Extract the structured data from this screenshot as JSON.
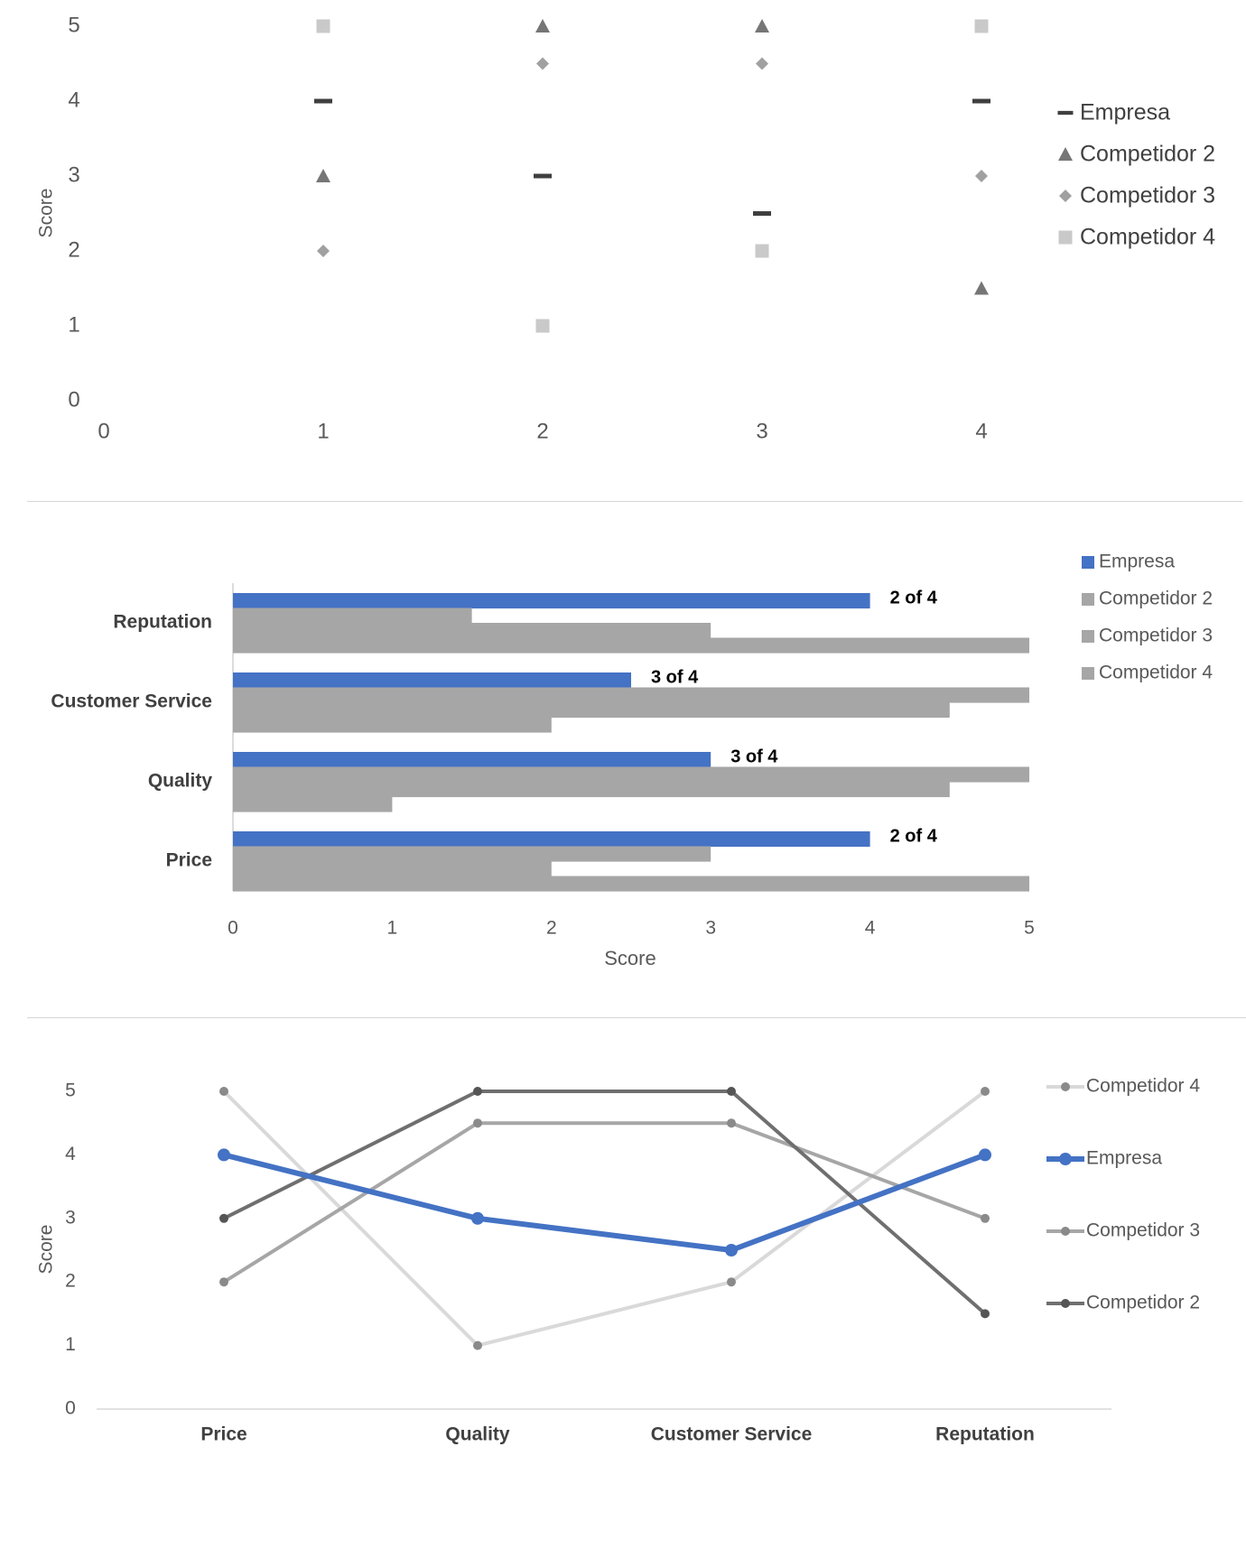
{
  "colors": {
    "empresa_marker": "#3f3f3f",
    "competidor2_marker": "#767676",
    "competidor3_marker": "#a0a0a0",
    "competidor4_marker": "#c9c9c9",
    "empresa_bar": "#4472c4",
    "competitor_bar": "#a6a6a6",
    "empresa_line": "#4472c4",
    "competidor2_line": "#6f6f6f",
    "competidor3_line": "#a6a6a6",
    "competidor4_line": "#d9d9d9"
  },
  "chart_data": [
    {
      "type": "scatter",
      "ylabel": "Score",
      "xlim": [
        0,
        4
      ],
      "ylim": [
        0,
        5
      ],
      "x_ticks": [
        "0",
        "1",
        "2",
        "3",
        "4"
      ],
      "y_ticks": [
        "0",
        "1",
        "2",
        "3",
        "4",
        "5"
      ],
      "legend_position": "right",
      "grid": false,
      "series": [
        {
          "name": "Empresa",
          "marker": "dash",
          "points": [
            [
              1,
              4
            ],
            [
              2,
              3
            ],
            [
              3,
              2.5
            ],
            [
              4,
              4
            ]
          ]
        },
        {
          "name": "Competidor 2",
          "marker": "triangle",
          "points": [
            [
              1,
              3
            ],
            [
              2,
              5
            ],
            [
              3,
              5
            ],
            [
              4,
              1.5
            ]
          ]
        },
        {
          "name": "Competidor 3",
          "marker": "diamond",
          "points": [
            [
              1,
              2
            ],
            [
              2,
              4.5
            ],
            [
              3,
              4.5
            ],
            [
              4,
              3
            ]
          ]
        },
        {
          "name": "Competidor 4",
          "marker": "square",
          "points": [
            [
              1,
              5
            ],
            [
              2,
              1
            ],
            [
              3,
              2
            ],
            [
              4,
              5
            ]
          ]
        }
      ]
    },
    {
      "type": "bar",
      "orientation": "horizontal",
      "xlabel": "Score",
      "xlim": [
        0,
        5
      ],
      "x_ticks": [
        "0",
        "1",
        "2",
        "3",
        "4",
        "5"
      ],
      "legend_position": "top-right",
      "grid": false,
      "categories": [
        "Price",
        "Quality",
        "Customer Service",
        "Reputation"
      ],
      "series": [
        {
          "name": "Empresa",
          "values": [
            4,
            3,
            2.5,
            4
          ]
        },
        {
          "name": "Competidor 2",
          "values": [
            3,
            5,
            5,
            1.5
          ]
        },
        {
          "name": "Competidor 3",
          "values": [
            2,
            4.5,
            4.5,
            3
          ]
        },
        {
          "name": "Competidor 4",
          "values": [
            5,
            1,
            2,
            5
          ]
        }
      ],
      "data_labels": [
        "2 of 4",
        "3 of 4",
        "3 of 4",
        "2 of 4"
      ]
    },
    {
      "type": "line",
      "ylabel": "Score",
      "ylim": [
        0,
        5
      ],
      "y_ticks": [
        "0",
        "1",
        "2",
        "3",
        "4",
        "5"
      ],
      "legend_position": "right",
      "grid": false,
      "categories": [
        "Price",
        "Quality",
        "Customer Service",
        "Reputation"
      ],
      "series": [
        {
          "name": "Competidor 4",
          "values": [
            5,
            1,
            2,
            5
          ]
        },
        {
          "name": "Empresa",
          "values": [
            4,
            3,
            2.5,
            4
          ]
        },
        {
          "name": "Competidor 3",
          "values": [
            2,
            4.5,
            4.5,
            3
          ]
        },
        {
          "name": "Competidor 2",
          "values": [
            3,
            5,
            5,
            1.5
          ]
        }
      ]
    }
  ]
}
